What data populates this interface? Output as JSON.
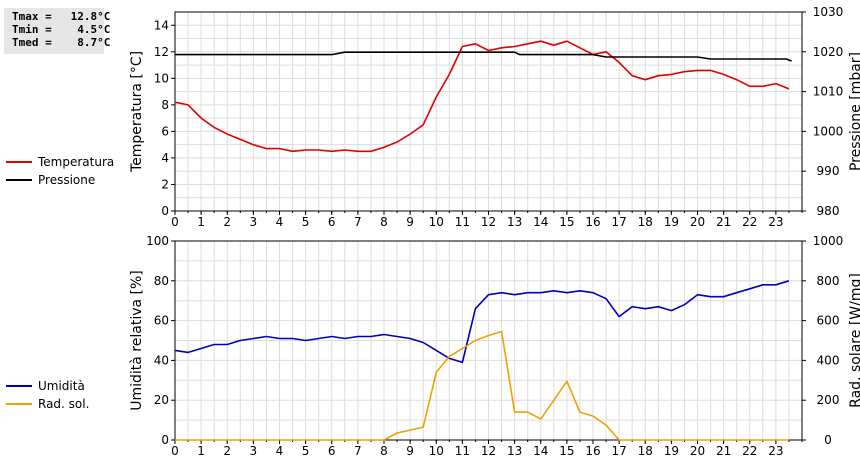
{
  "stats": [
    {
      "label": "Tmax =",
      "value": "12.8°C"
    },
    {
      "label": "Tmin =",
      "value": "4.5°C"
    },
    {
      "label": "Tmed =",
      "value": "8.7°C"
    }
  ],
  "legend_top": [
    {
      "label": "Temperatura",
      "color": "#e00000"
    },
    {
      "label": "Pressione",
      "color": "#000000"
    }
  ],
  "legend_bottom": [
    {
      "label": "Umidità",
      "color": "#0000c0"
    },
    {
      "label": "Rad. sol.",
      "color": "#f0a000"
    }
  ],
  "chart_data": [
    {
      "type": "line",
      "xlabel": "",
      "xticks": [
        "0",
        "1",
        "2",
        "3",
        "4",
        "5",
        "6",
        "7",
        "8",
        "9",
        "10",
        "11",
        "12",
        "13",
        "14",
        "15",
        "16",
        "17",
        "18",
        "19",
        "20",
        "21",
        "22",
        "23"
      ],
      "xlim": [
        0,
        24
      ],
      "y_left": {
        "label": "Temperatura [°C]",
        "lim": [
          0,
          15
        ],
        "ticks": [
          "0",
          "2",
          "4",
          "6",
          "8",
          "10",
          "12",
          "14"
        ]
      },
      "y_right": {
        "label": "Pressione [mbar]",
        "lim": [
          980,
          1030
        ],
        "ticks": [
          "980",
          "990",
          "1000",
          "1010",
          "1020",
          "1030"
        ]
      },
      "grid": true,
      "series": [
        {
          "name": "Temperatura",
          "axis": "left",
          "color": "#e00000",
          "x": [
            0,
            0.5,
            1,
            1.5,
            2,
            2.5,
            3,
            3.5,
            4,
            4.5,
            5,
            5.5,
            6,
            6.5,
            7,
            7.5,
            8,
            8.5,
            9,
            9.5,
            10,
            10.5,
            11,
            11.5,
            12,
            12.5,
            13,
            13.5,
            14,
            14.5,
            15,
            15.5,
            16,
            16.5,
            17,
            17.5,
            18,
            18.5,
            19,
            19.5,
            20,
            20.5,
            21,
            21.5,
            22,
            22.5,
            23,
            23.5
          ],
          "y": [
            8.2,
            8.0,
            7.0,
            6.3,
            5.8,
            5.4,
            5.0,
            4.7,
            4.7,
            4.5,
            4.6,
            4.6,
            4.5,
            4.6,
            4.5,
            4.5,
            4.8,
            5.2,
            5.8,
            6.5,
            8.6,
            10.3,
            12.4,
            12.6,
            12.1,
            12.3,
            12.4,
            12.6,
            12.8,
            12.5,
            12.8,
            12.3,
            11.8,
            12.0,
            11.2,
            10.2,
            9.9,
            10.2,
            10.3,
            10.5,
            10.6,
            10.6,
            10.3,
            9.9,
            9.4,
            9.4,
            9.6,
            9.2
          ]
        },
        {
          "name": "Pressione",
          "axis": "right",
          "color": "#000000",
          "x": [
            0,
            6,
            6.5,
            13,
            13.2,
            16,
            16.5,
            20,
            20.5,
            23.4,
            23.6
          ],
          "y": [
            1019.3,
            1019.3,
            1019.9,
            1019.9,
            1019.3,
            1019.3,
            1018.7,
            1018.7,
            1018.2,
            1018.2,
            1017.7
          ]
        }
      ]
    },
    {
      "type": "line",
      "xlabel": "",
      "xticks": [
        "0",
        "1",
        "2",
        "3",
        "4",
        "5",
        "6",
        "7",
        "8",
        "9",
        "10",
        "11",
        "12",
        "13",
        "14",
        "15",
        "16",
        "17",
        "18",
        "19",
        "20",
        "21",
        "22",
        "23"
      ],
      "xlim": [
        0,
        24
      ],
      "y_left": {
        "label": "Umidità relativa [%]",
        "lim": [
          0,
          100
        ],
        "ticks": [
          "0",
          "20",
          "40",
          "60",
          "80",
          "100"
        ]
      },
      "y_right": {
        "label": "Rad. solare [W/mq]",
        "lim": [
          0,
          1000
        ],
        "ticks": [
          "0",
          "200",
          "400",
          "600",
          "800",
          "1000"
        ]
      },
      "grid": true,
      "series": [
        {
          "name": "Umidità",
          "axis": "left",
          "color": "#0000c0",
          "x": [
            0,
            0.5,
            1,
            1.5,
            2,
            2.5,
            3,
            3.5,
            4,
            4.5,
            5,
            5.5,
            6,
            6.5,
            7,
            7.5,
            8,
            8.5,
            9,
            9.5,
            10,
            10.5,
            11,
            11.5,
            12,
            12.5,
            13,
            13.5,
            14,
            14.5,
            15,
            15.5,
            16,
            16.5,
            17,
            17.5,
            18,
            18.5,
            19,
            19.5,
            20,
            20.5,
            21,
            21.5,
            22,
            22.5,
            23,
            23.5
          ],
          "y": [
            45,
            44,
            46,
            48,
            48,
            50,
            51,
            52,
            51,
            51,
            50,
            51,
            52,
            51,
            52,
            52,
            53,
            52,
            51,
            49,
            45,
            41,
            39,
            66,
            73,
            74,
            73,
            74,
            74,
            75,
            74,
            75,
            74,
            71,
            62,
            67,
            66,
            67,
            65,
            68,
            73,
            72,
            72,
            74,
            76,
            78,
            78,
            80
          ]
        },
        {
          "name": "Rad. sol.",
          "axis": "right",
          "color": "#f0a000",
          "x": [
            0,
            8,
            8.5,
            9,
            9.5,
            10,
            10.5,
            11,
            11.5,
            12,
            12.5,
            13,
            13.5,
            14,
            14.5,
            15,
            15.5,
            16,
            16.5,
            17,
            23.5
          ],
          "y": [
            0,
            0,
            35,
            50,
            65,
            340,
            420,
            460,
            500,
            525,
            545,
            140,
            140,
            105,
            200,
            295,
            140,
            120,
            75,
            0,
            0
          ]
        }
      ]
    }
  ]
}
